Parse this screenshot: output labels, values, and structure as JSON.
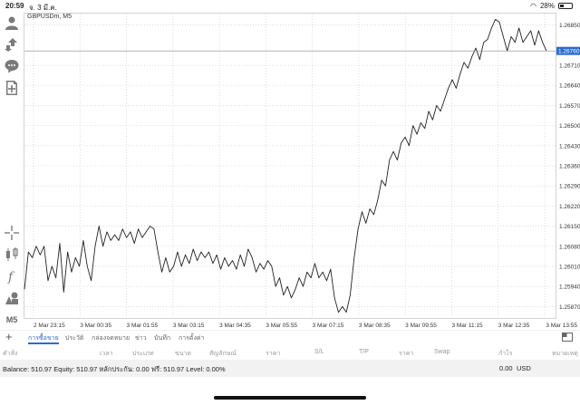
{
  "status_bar": {
    "time": "20:59",
    "date": "จ. 3 มี.ค.",
    "battery": "28%",
    "battery_level": 0.28
  },
  "chart": {
    "symbol": "GBPUSDm, M5",
    "current_price_label": "1.26760",
    "line_color": "#222222",
    "price_tag_color": "#2b6cd1"
  },
  "chart_data": {
    "type": "line",
    "title": "GBPUSDm, M5",
    "x_tick_labels": [
      "2 Mar 23:15",
      "3 Mar 00:35",
      "3 Mar 01:55",
      "3 Mar 03:15",
      "3 Mar 04:35",
      "3 Mar 05:55",
      "3 Mar 07:15",
      "3 Mar 08:35",
      "3 Mar 09:55",
      "3 Mar 11:15",
      "3 Mar 12:35",
      "3 Mar 13:55"
    ],
    "y_tick_labels": [
      "1.26850",
      "1.26710",
      "1.26640",
      "1.26570",
      "1.26500",
      "1.26430",
      "1.26360",
      "1.26290",
      "1.26220",
      "1.26150",
      "1.26080",
      "1.26010",
      "1.25940",
      "1.25870"
    ],
    "ylim": [
      1.2583,
      1.2689
    ],
    "grid": true,
    "current_price": 1.2676,
    "series": [
      {
        "values": [
          1.2593,
          1.2606,
          1.2604,
          1.2608,
          1.2605,
          1.2608,
          1.2596,
          1.2601,
          1.2597,
          1.2609,
          1.2592,
          1.2606,
          1.2599,
          1.2604,
          1.2601,
          1.261,
          1.2601,
          1.2596,
          1.2608,
          1.2615,
          1.2608,
          1.2613,
          1.261,
          1.2612,
          1.261,
          1.2614,
          1.2611,
          1.2613,
          1.2609,
          1.2614,
          1.2611,
          1.2613,
          1.2615,
          1.2614,
          1.2606,
          1.2599,
          1.2604,
          1.2599,
          1.2601,
          1.2606,
          1.2601,
          1.2605,
          1.2602,
          1.2607,
          1.2603,
          1.2606,
          1.2604,
          1.2606,
          1.2602,
          1.2605,
          1.26,
          1.2604,
          1.2601,
          1.2603,
          1.26,
          1.2605,
          1.2601,
          1.2607,
          1.2604,
          1.2599,
          1.2602,
          1.26,
          1.2603,
          1.2601,
          1.2594,
          1.2597,
          1.2591,
          1.2594,
          1.259,
          1.2593,
          1.2597,
          1.2594,
          1.2599,
          1.2597,
          1.2602,
          1.2597,
          1.2599,
          1.2596,
          1.26,
          1.259,
          1.2585,
          1.2587,
          1.2585,
          1.2591,
          1.2604,
          1.2614,
          1.262,
          1.2616,
          1.2621,
          1.2619,
          1.2624,
          1.2631,
          1.2629,
          1.2638,
          1.2641,
          1.2638,
          1.2644,
          1.2646,
          1.2643,
          1.265,
          1.2647,
          1.2651,
          1.2649,
          1.2655,
          1.2652,
          1.2657,
          1.2655,
          1.2659,
          1.2663,
          1.2666,
          1.2663,
          1.2668,
          1.2672,
          1.267,
          1.2674,
          1.2677,
          1.2673,
          1.2679,
          1.268,
          1.2684,
          1.2687,
          1.2686,
          1.2681,
          1.2676,
          1.2681,
          1.2679,
          1.2684,
          1.2679,
          1.2681,
          1.2683,
          1.2678,
          1.2683,
          1.2679,
          1.2676
        ]
      }
    ]
  },
  "tabs": [
    {
      "label": "การซื้อขาย",
      "active": true
    },
    {
      "label": "ประวัติ",
      "active": false
    },
    {
      "label": "กล่องจดหมาย",
      "active": false
    },
    {
      "label": "ข่าว",
      "active": false
    },
    {
      "label": "บันทึก",
      "active": false
    },
    {
      "label": "การตั้งค่า",
      "active": false
    }
  ],
  "table_headers": [
    "คำสั่ง",
    "เวลา",
    "ประเภท",
    "ขนาด",
    "สัญลักษณ์",
    "ราคา",
    "S/L",
    "T/P",
    "ราคา",
    "Swap",
    "กำไร",
    "หมายเหตุ"
  ],
  "balance": {
    "text": "Balance: 510.97 Equity: 510.97 หลักประกัน: 0.00 ฟรี: 510.97 Level: 0.00%",
    "total": "0.00",
    "currency": "USD"
  },
  "toolbar": {
    "timeframe": "M5"
  }
}
